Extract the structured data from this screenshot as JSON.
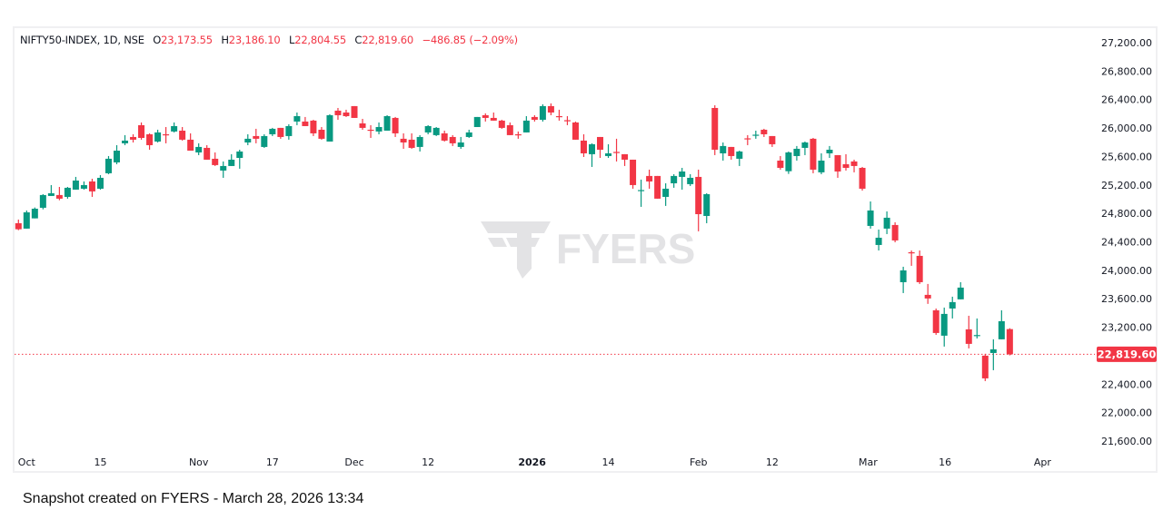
{
  "header": {
    "symbol": "NIFTY50-INDEX, 1D, NSE",
    "open_label": "O",
    "open": "23,173.55",
    "high_label": "H",
    "high": "23,186.10",
    "low_label": "L",
    "low": "22,804.55",
    "close_label": "C",
    "close": "22,819.60",
    "change": "−486.85 (−2.09%)"
  },
  "watermark": "FYERS",
  "footer": "Snapshot created on FYERS - March 28, 2026 13:34",
  "colors": {
    "up": "#089981",
    "down": "#f23645",
    "grid_border": "#f0f0f2",
    "watermark": "#e3e3e5"
  },
  "chart_data": {
    "type": "candlestick",
    "title": "NIFTY50-INDEX, 1D, NSE",
    "ylim": [
      21600,
      27200
    ],
    "y_ticks": [
      {
        "value": 27200,
        "label": "27,200.00"
      },
      {
        "value": 26800,
        "label": "26,800.00"
      },
      {
        "value": 26400,
        "label": "26,400.00"
      },
      {
        "value": 26000,
        "label": "26,000.00"
      },
      {
        "value": 25600,
        "label": "25,600.00"
      },
      {
        "value": 25200,
        "label": "25,200.00"
      },
      {
        "value": 24800,
        "label": "24,800.00"
      },
      {
        "value": 24400,
        "label": "24,400.00"
      },
      {
        "value": 24000,
        "label": "24,000.00"
      },
      {
        "value": 23600,
        "label": "23,600.00"
      },
      {
        "value": 23200,
        "label": "23,200.00"
      },
      {
        "value": 22400,
        "label": "22,400.00"
      },
      {
        "value": 22000,
        "label": "22,000.00"
      },
      {
        "value": 21600,
        "label": "21,600.00"
      }
    ],
    "last_price": {
      "value": 22819.6,
      "label": "22,819.60"
    },
    "x_ticks": [
      {
        "index": 1,
        "label": "Oct",
        "bold": false
      },
      {
        "index": 10,
        "label": "15",
        "bold": false
      },
      {
        "index": 22,
        "label": "Nov",
        "bold": false
      },
      {
        "index": 31,
        "label": "17",
        "bold": false
      },
      {
        "index": 41,
        "label": "Dec",
        "bold": false
      },
      {
        "index": 50,
        "label": "12",
        "bold": false
      },
      {
        "index": 62.7,
        "label": "2026",
        "bold": true
      },
      {
        "index": 72,
        "label": "14",
        "bold": false
      },
      {
        "index": 83,
        "label": "Feb",
        "bold": false
      },
      {
        "index": 92,
        "label": "12",
        "bold": false
      },
      {
        "index": 103.7,
        "label": "Mar",
        "bold": false
      },
      {
        "index": 113.1,
        "label": "16",
        "bold": false
      },
      {
        "index": 125,
        "label": "Apr",
        "bold": false
      }
    ],
    "ohlc": [
      [
        24662,
        24713,
        24564,
        24577
      ],
      [
        24586,
        24841,
        24586,
        24815
      ],
      [
        24730,
        24883,
        24730,
        24866
      ],
      [
        24879,
        25070,
        24857,
        25058
      ],
      [
        25045,
        25198,
        25045,
        25083
      ],
      [
        25058,
        25172,
        24985,
        25007
      ],
      [
        25032,
        25172,
        25007,
        25160
      ],
      [
        25134,
        25313,
        25134,
        25262
      ],
      [
        25147,
        25249,
        25134,
        25198
      ],
      [
        25249,
        25287,
        25032,
        25109
      ],
      [
        25147,
        25338,
        25134,
        25300
      ],
      [
        25364,
        25606,
        25351,
        25568
      ],
      [
        25517,
        25759,
        25491,
        25682
      ],
      [
        25785,
        25900,
        25759,
        25823
      ],
      [
        25874,
        25912,
        25797,
        25836
      ],
      [
        26040,
        26078,
        25836,
        25861
      ],
      [
        25912,
        25925,
        25695,
        25759
      ],
      [
        25810,
        25976,
        25797,
        25938
      ],
      [
        25912,
        26014,
        25785,
        25906
      ],
      [
        25951,
        26078,
        25938,
        26027
      ],
      [
        25963,
        26014,
        25823,
        25836
      ],
      [
        25836,
        25925,
        25682,
        25682
      ],
      [
        25657,
        25785,
        25619,
        25734
      ],
      [
        25721,
        25759,
        25555,
        25555
      ],
      [
        25568,
        25657,
        25466,
        25479
      ],
      [
        25402,
        25530,
        25300,
        25466
      ],
      [
        25466,
        25632,
        25466,
        25555
      ],
      [
        25580,
        25695,
        25428,
        25670
      ],
      [
        25797,
        25912,
        25759,
        25849
      ],
      [
        25887,
        25989,
        25785,
        25849
      ],
      [
        25734,
        25912,
        25721,
        25887
      ],
      [
        25912,
        26002,
        25887,
        25989
      ],
      [
        26002,
        26002,
        25849,
        25874
      ],
      [
        25887,
        26053,
        25836,
        26027
      ],
      [
        26091,
        26218,
        26040,
        26167
      ],
      [
        26091,
        26155,
        26027,
        26027
      ],
      [
        26104,
        26116,
        25887,
        25925
      ],
      [
        25976,
        26014,
        25836,
        25849
      ],
      [
        25810,
        26193,
        25810,
        26180
      ],
      [
        26244,
        26282,
        26116,
        26180
      ],
      [
        26218,
        26257,
        26155,
        26167
      ],
      [
        26308,
        26308,
        26142,
        26142
      ],
      [
        26065,
        26129,
        25976,
        26002
      ],
      [
        25976,
        26040,
        25861,
        25970
      ],
      [
        25951,
        26078,
        25912,
        26014
      ],
      [
        25963,
        26180,
        25963,
        26167
      ],
      [
        26142,
        26155,
        25874,
        25925
      ],
      [
        25849,
        25925,
        25708,
        25797
      ],
      [
        25836,
        25925,
        25708,
        25721
      ],
      [
        25734,
        25900,
        25670,
        25874
      ],
      [
        25938,
        26040,
        25912,
        26027
      ],
      [
        25900,
        26014,
        25887,
        26002
      ],
      [
        25925,
        25963,
        25810,
        25823
      ],
      [
        25874,
        25900,
        25747,
        25785
      ],
      [
        25734,
        25874,
        25708,
        25797
      ],
      [
        25874,
        25976,
        25861,
        25938
      ],
      [
        26014,
        26155,
        26014,
        26155
      ],
      [
        26180,
        26206,
        26091,
        26142
      ],
      [
        26142,
        26218,
        26104,
        26104
      ],
      [
        26104,
        26116,
        25989,
        26002
      ],
      [
        26040,
        26078,
        25900,
        25900
      ],
      [
        25912,
        25951,
        25849,
        25906
      ],
      [
        25938,
        26167,
        25938,
        26104
      ],
      [
        26155,
        26180,
        26091,
        26116
      ],
      [
        26116,
        26333,
        26091,
        26308
      ],
      [
        26308,
        26346,
        26180,
        26218
      ],
      [
        26167,
        26257,
        26104,
        26161
      ],
      [
        26110,
        26167,
        26040,
        26104
      ],
      [
        26078,
        26091,
        25836,
        25836
      ],
      [
        25823,
        25912,
        25593,
        25644
      ],
      [
        25632,
        25785,
        25453,
        25772
      ],
      [
        25874,
        25874,
        25580,
        25695
      ],
      [
        25606,
        25772,
        25580,
        25644
      ],
      [
        25664,
        25849,
        25530,
        25657
      ],
      [
        25632,
        25632,
        25466,
        25555
      ],
      [
        25555,
        25555,
        25147,
        25198
      ],
      [
        25121,
        25275,
        24892,
        25128
      ],
      [
        25326,
        25415,
        25147,
        25249
      ],
      [
        25326,
        25326,
        25007,
        25007
      ],
      [
        25032,
        25223,
        24905,
        25147
      ],
      [
        25223,
        25351,
        25160,
        25326
      ],
      [
        25313,
        25440,
        25134,
        25389
      ],
      [
        25211,
        25351,
        25185,
        25300
      ],
      [
        25313,
        25415,
        24548,
        24789
      ],
      [
        24764,
        25083,
        24662,
        25070
      ],
      [
        26282,
        26320,
        25619,
        25695
      ],
      [
        25644,
        25797,
        25542,
        25747
      ],
      [
        25734,
        25734,
        25555,
        25606
      ],
      [
        25568,
        25682,
        25466,
        25670
      ],
      [
        25855,
        25900,
        25759,
        25849
      ],
      [
        25900,
        25963,
        25849,
        25906
      ],
      [
        25976,
        25989,
        25874,
        25912
      ],
      [
        25887,
        25887,
        25734,
        25772
      ],
      [
        25542,
        25606,
        25415,
        25440
      ],
      [
        25393,
        25670,
        25355,
        25657
      ],
      [
        25606,
        25747,
        25542,
        25708
      ],
      [
        25721,
        25810,
        25619,
        25797
      ],
      [
        25849,
        25861,
        25364,
        25415
      ],
      [
        25377,
        25644,
        25351,
        25542
      ],
      [
        25644,
        25747,
        25580,
        25695
      ],
      [
        25619,
        25619,
        25300,
        25389
      ],
      [
        25491,
        25632,
        25402,
        25440
      ],
      [
        25530,
        25555,
        25377,
        25466
      ],
      [
        25440,
        25453,
        25121,
        25147
      ],
      [
        24624,
        24968,
        24586,
        24841
      ],
      [
        24356,
        24573,
        24279,
        24458
      ],
      [
        24586,
        24828,
        24509,
        24739
      ],
      [
        24637,
        24675,
        24394,
        24420
      ],
      [
        23833,
        24050,
        23680,
        23999
      ],
      [
        24254,
        24279,
        24063,
        24238
      ],
      [
        24203,
        24279,
        23808,
        23833
      ],
      [
        23655,
        23808,
        23528,
        23604
      ],
      [
        23438,
        23463,
        23093,
        23119
      ],
      [
        23081,
        23476,
        22928,
        23387
      ],
      [
        23463,
        23629,
        23323,
        23553
      ],
      [
        23592,
        23833,
        23592,
        23757
      ],
      [
        23170,
        23361,
        22902,
        22966
      ],
      [
        23087,
        23323,
        23042,
        23090
      ],
      [
        22800,
        22826,
        22443,
        22481
      ],
      [
        22838,
        23030,
        22596,
        22889
      ],
      [
        23030,
        23438,
        23030,
        23285
      ],
      [
        23173.55,
        23186.1,
        22804.55,
        22819.6
      ]
    ]
  }
}
